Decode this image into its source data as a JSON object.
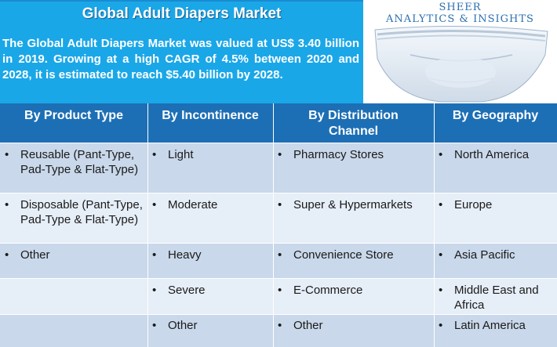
{
  "title": "Global Adult Diapers Market",
  "summary": "The Global Adult Diapers Market was valued at US$ 3.40 billion in 2019. Growing at a high CAGR of 4.5% between 2020 and 2028, it is estimated to reach $5.40 billion by 2028.",
  "brand": {
    "line1": "SHEER",
    "line2": "ANALYTICS & INSIGHTS"
  },
  "colors": {
    "infobox": "#1aa7e8",
    "header": "#1d6fb5",
    "row_dark": "#c9d8ea",
    "row_light": "#e6eef7",
    "brand_text": "#2b6fb0"
  },
  "table": {
    "headers": [
      "By Product Type",
      "By Incontinence",
      "By Distribution Channel",
      "By Geography"
    ],
    "columns": [
      [
        "Reusable (Pant-Type, Pad-Type & Flat-Type)",
        "Disposable (Pant-Type, Pad-Type & Flat-Type)",
        "Other",
        "",
        ""
      ],
      [
        "Light",
        "Moderate",
        "Heavy",
        "Severe",
        "Other"
      ],
      [
        "Pharmacy Stores",
        "Super & Hypermarkets",
        "Convenience Store",
        "E-Commerce",
        "Other"
      ],
      [
        "North America",
        "Europe",
        "Asia Pacific",
        "Middle East and Africa",
        "Latin America"
      ]
    ]
  }
}
